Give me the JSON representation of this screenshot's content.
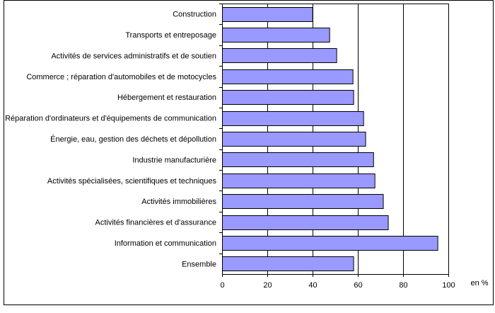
{
  "chart_data": {
    "type": "bar",
    "orientation": "horizontal",
    "categories": [
      "Construction",
      "Transports et entreposage",
      "Activités de services administratifs et de soutien",
      "Commerce ; réparation d'automobiles et de motocycles",
      "Hébergement et restauration",
      "Réparation d'ordinateurs et d'équipements de communication",
      "Énergie, eau, gestion des déchets et dépollution",
      "Industrie manufacturière",
      "Activités spécialisées, scientifiques et techniques",
      "Activités immobilières",
      "Activités financières et d'assurance",
      "Information et communication",
      "Ensemble"
    ],
    "values": [
      39.9,
      47.4,
      50.5,
      57.7,
      58.0,
      62.4,
      63.3,
      66.8,
      67.4,
      71.1,
      73.3,
      95.2,
      58.0
    ],
    "xlim": [
      0,
      100
    ],
    "xticks": [
      "0",
      "20",
      "40",
      "60",
      "80",
      "100"
    ],
    "xlabel": "en %",
    "grid": true,
    "bar_color": "#9999ff"
  }
}
